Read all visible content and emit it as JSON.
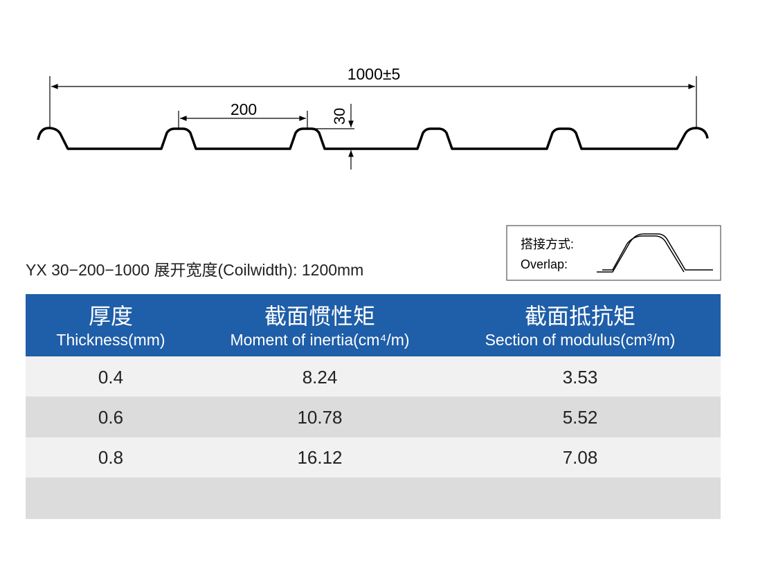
{
  "profile": {
    "total_width": "1000±5",
    "pitch": "200",
    "height": "30"
  },
  "caption": "YX 30−200−1000  展开宽度(Coilwidth): 1200mm",
  "overlap": {
    "label_cn": "搭接方式:",
    "label_en": "Overlap:"
  },
  "table": {
    "headers": [
      {
        "cn": "厚度",
        "en": "Thickness(mm)"
      },
      {
        "cn": "截面惯性矩",
        "en": "Moment of inertia(cm⁴/m)"
      },
      {
        "cn": "截面抵抗矩",
        "en": "Section of modulus(cm³/m)"
      }
    ],
    "rows": [
      [
        "0.4",
        "8.24",
        "3.53"
      ],
      [
        "0.6",
        "10.78",
        "5.52"
      ],
      [
        "0.8",
        "16.12",
        "7.08"
      ]
    ]
  }
}
